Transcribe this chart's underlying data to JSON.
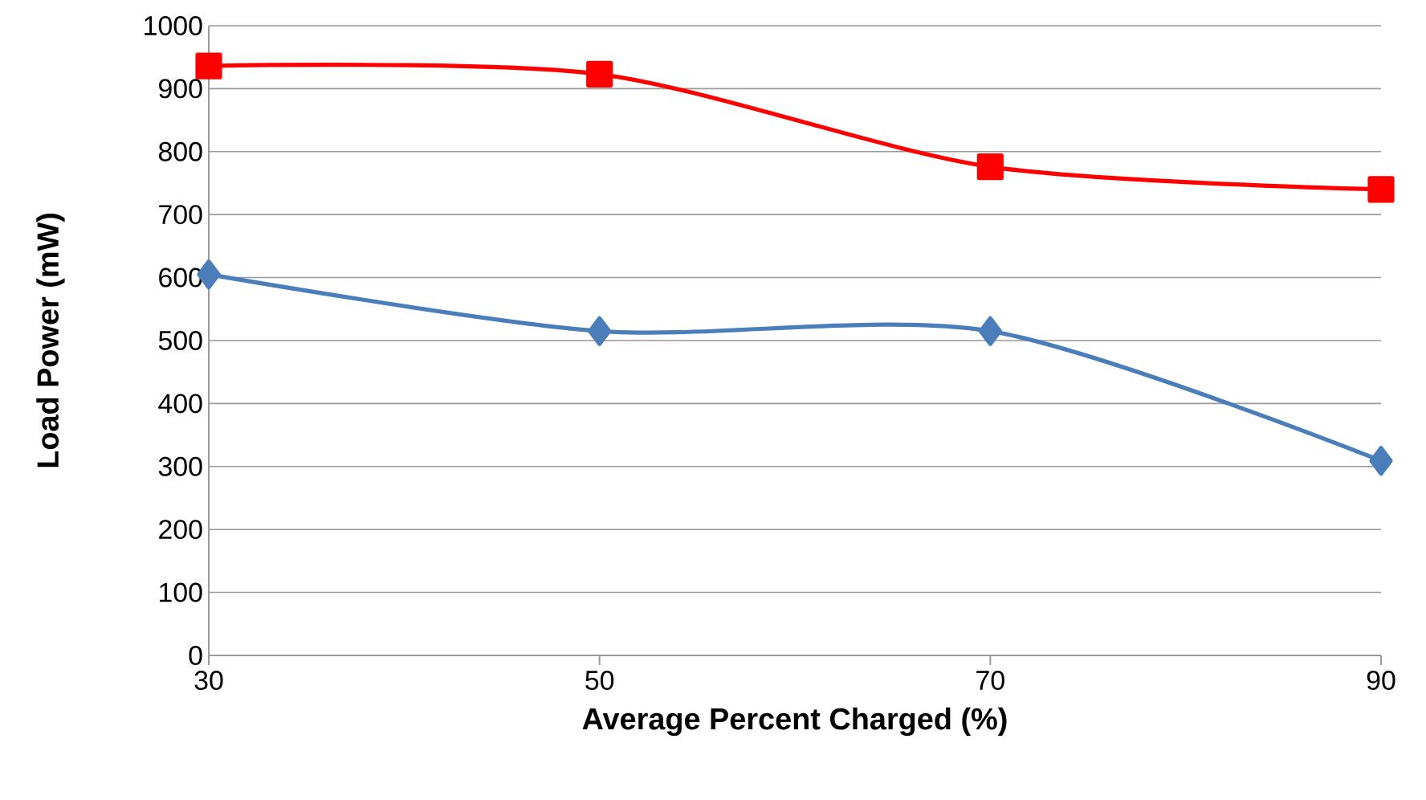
{
  "chart_data": {
    "type": "line",
    "xlabel": "Average Percent Charged (%)",
    "ylabel": "Load Power (mW)",
    "x": [
      30,
      50,
      70,
      90
    ],
    "series": [
      {
        "color": "#ff0000",
        "marker": "square",
        "values": [
          936,
          923,
          776,
          740
        ]
      },
      {
        "color": "#4a7ebb",
        "marker": "diamond",
        "values": [
          605,
          515,
          515,
          309
        ]
      }
    ],
    "xlim": [
      30,
      90
    ],
    "xticks": [
      30,
      50,
      70,
      90
    ],
    "ylim": [
      0,
      1000
    ],
    "yticks": [
      0,
      100,
      200,
      300,
      400,
      500,
      600,
      700,
      800,
      900,
      1000
    ],
    "grid": "y"
  }
}
